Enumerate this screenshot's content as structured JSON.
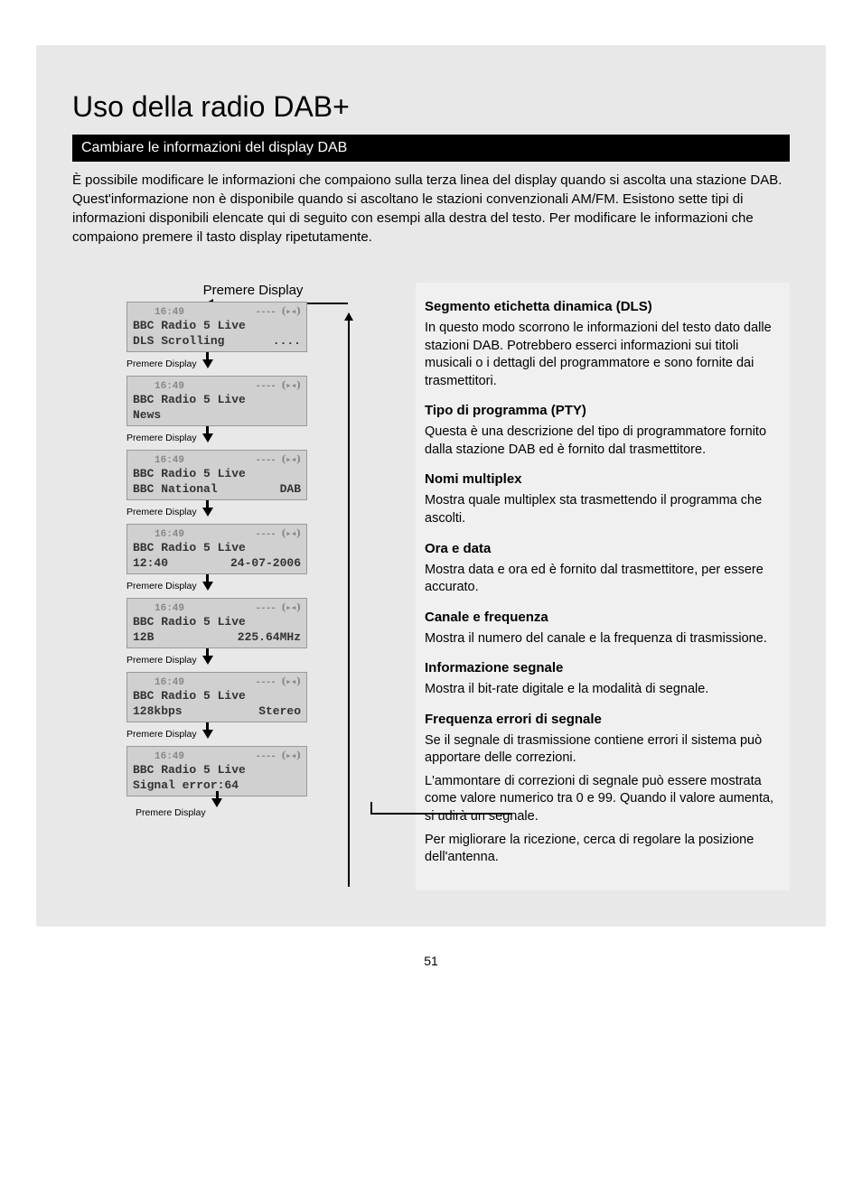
{
  "page_title": "Uso della radio DAB+",
  "section_bar": "Cambiare le informazioni del display DAB",
  "intro": "È possibile modificare le informazioni che compaiono sulla terza linea del display quando si ascolta una stazione DAB. Quest'informazione non è disponibile quando si ascoltano le stazioni convenzionali AM/FM. Esistono sette tipi di informazioni disponibili elencate qui di seguito con esempi alla destra del testo. Per modificare le informazioni che compaiono premere il tasto display ripetutamente.",
  "diagram": {
    "top_label": "Premere Display",
    "between_label": "Premere Display",
    "time": "16:49",
    "icons": "---- ⦗▸◂⦘",
    "station": "BBC Radio 5 Live",
    "screens": [
      {
        "line3_left": "DLS Scrolling",
        "line3_right": "...."
      },
      {
        "line3_left": "News",
        "line3_right": ""
      },
      {
        "line3_left": "BBC National",
        "line3_right": "DAB"
      },
      {
        "line3_left": "12:40",
        "line3_right": "24-07-2006"
      },
      {
        "line3_left": "12B",
        "line3_right": "225.64MHz"
      },
      {
        "line3_left": "128kbps",
        "line3_right": "Stereo"
      },
      {
        "line3_left": "Signal error:64",
        "line3_right": ""
      }
    ]
  },
  "sections": [
    {
      "heading": "Segmento etichetta dinamica (DLS)",
      "paras": [
        "In questo modo scorrono le informazioni del testo dato dalle stazioni DAB. Potrebbero esserci informazioni sui titoli musicali o i dettagli del programmatore e sono fornite dai trasmettitori."
      ]
    },
    {
      "heading": "Tipo di programma (PTY)",
      "paras": [
        "Questa è una descrizione del tipo di programmatore fornito dalla stazione DAB ed è fornito dal trasmettitore."
      ]
    },
    {
      "heading": "Nomi multiplex",
      "paras": [
        "Mostra quale multiplex sta trasmettendo il programma che ascolti."
      ]
    },
    {
      "heading": "Ora e data",
      "paras": [
        "Mostra data e ora ed è fornito dal trasmettitore, per essere accurato."
      ]
    },
    {
      "heading": "Canale e frequenza",
      "paras": [
        "Mostra il numero del canale e la frequenza di trasmissione."
      ]
    },
    {
      "heading": "Informazione segnale",
      "paras": [
        "Mostra il bit-rate digitale e la modalità di segnale."
      ]
    },
    {
      "heading": "Frequenza errori di segnale",
      "paras": [
        "Se il segnale di trasmissione contiene errori il sistema può apportare delle correzioni.",
        "L'ammontare di correzioni di segnale può essere mostrata come valore numerico tra 0 e 99. Quando il valore aumenta, si udirà un segnale.",
        "Per migliorare la ricezione, cerca di regolare la posizione dell'antenna."
      ]
    }
  ],
  "page_number": "51"
}
